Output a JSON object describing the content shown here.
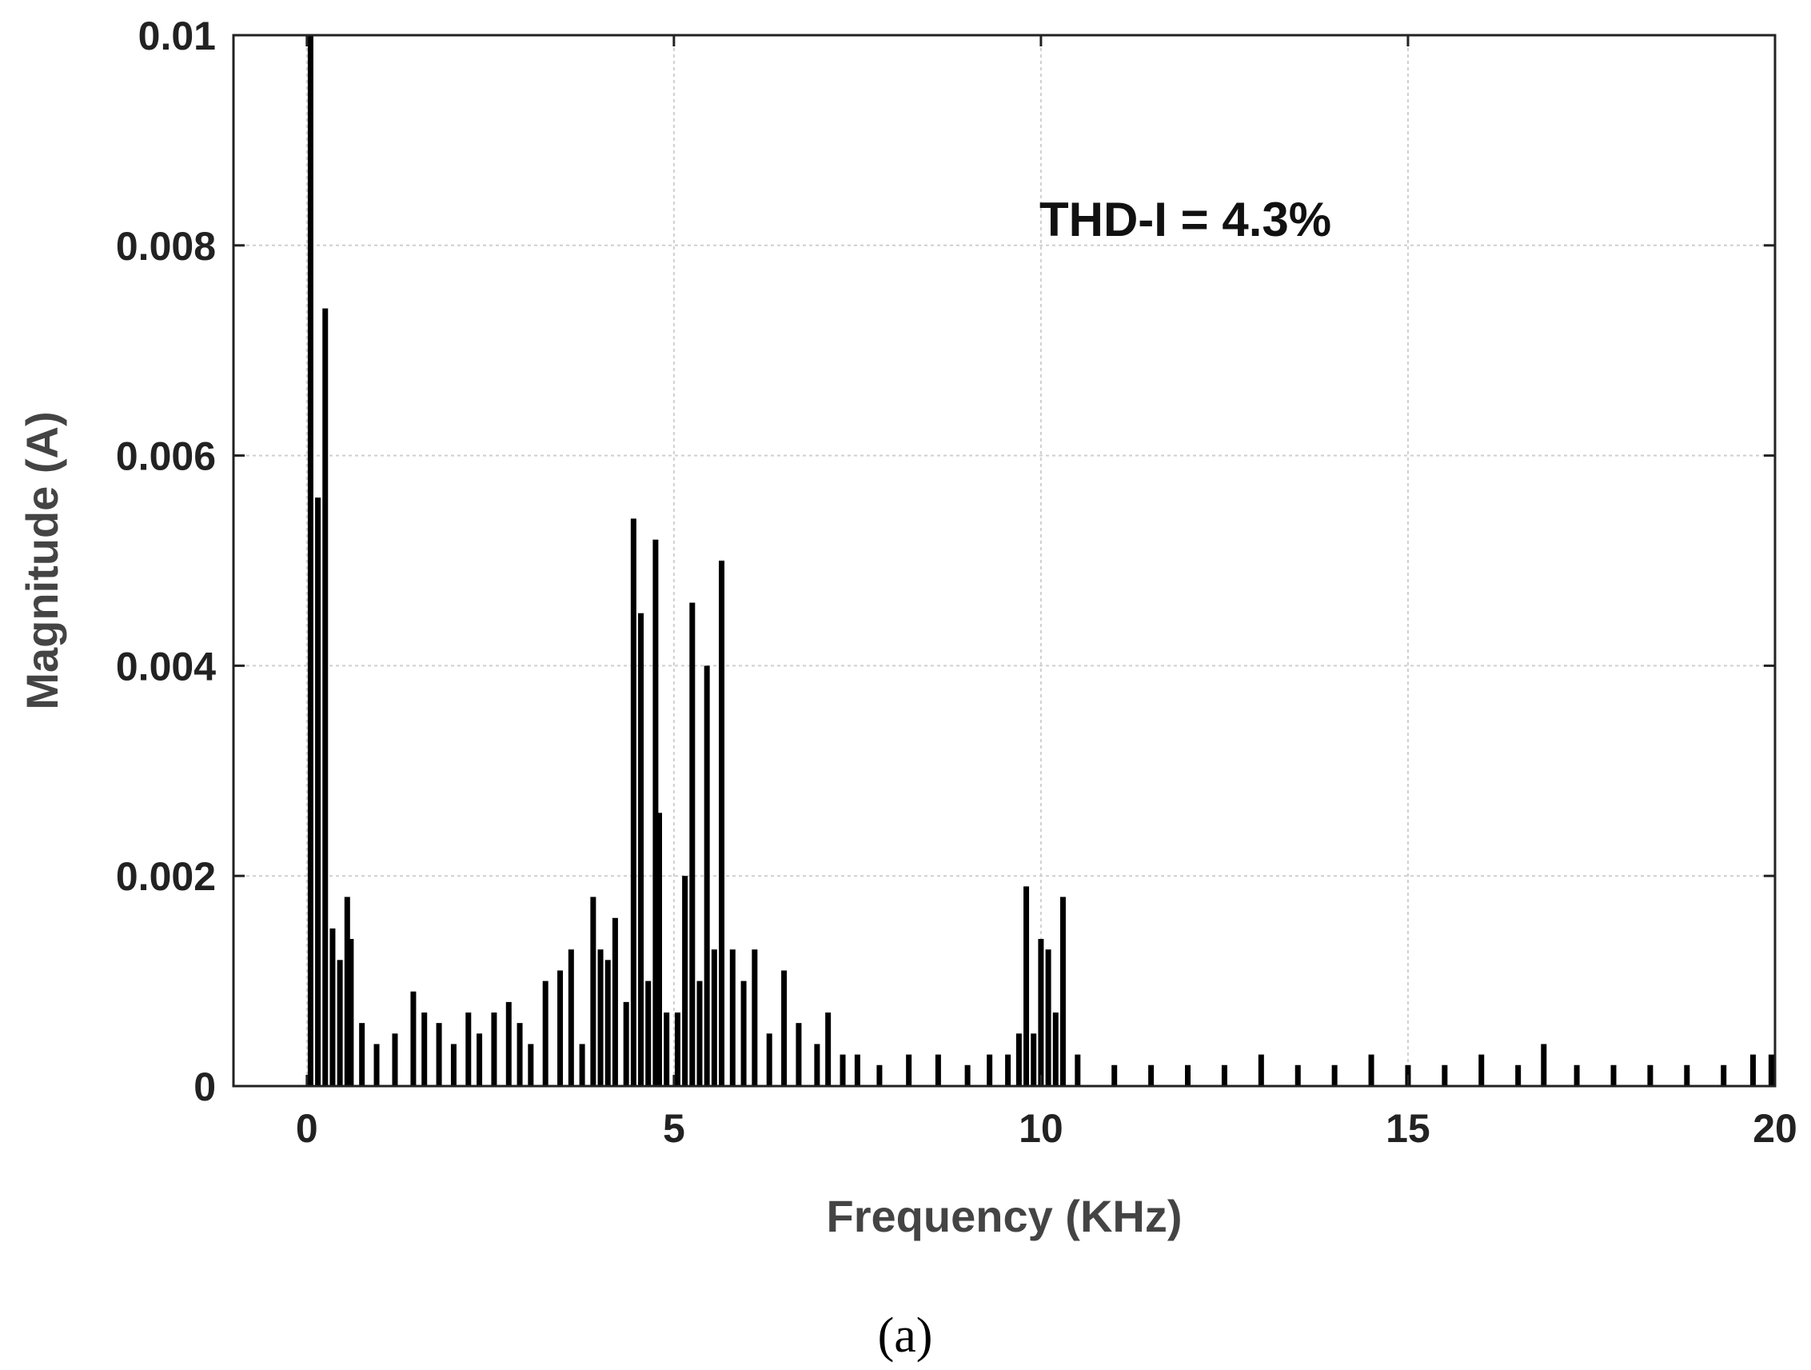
{
  "chart_data": {
    "type": "bar",
    "title": "",
    "xlabel": "Frequency (KHz)",
    "ylabel": "Magnitude (A)",
    "xlim": [
      -1,
      20
    ],
    "ylim": [
      0,
      0.01
    ],
    "x_ticks": [
      0,
      5,
      10,
      15,
      20
    ],
    "x_tick_labels": [
      "0",
      "5",
      "10",
      "15",
      "20"
    ],
    "y_ticks": [
      0,
      0.002,
      0.004,
      0.006,
      0.008,
      0.01
    ],
    "y_tick_labels": [
      "0",
      "0.002",
      "0.004",
      "0.006",
      "0.008",
      "0.01"
    ],
    "grid": true,
    "annotation": "THD-I = 4.3%",
    "panel_label": "(a)",
    "bar_color": "#000000",
    "series": [
      {
        "x": [
          0.05,
          0.15,
          0.25,
          0.35,
          0.45,
          0.55,
          0.6,
          0.75,
          0.95,
          1.2,
          1.45,
          1.6,
          1.8,
          2.0,
          2.2,
          2.35,
          2.55,
          2.75,
          2.9,
          3.05,
          3.25,
          3.45,
          3.6,
          3.75,
          3.9,
          4.0,
          4.1,
          4.2,
          4.35,
          4.45,
          4.55,
          4.65,
          4.75,
          4.8,
          4.9,
          5.05,
          5.15,
          5.25,
          5.35,
          5.45,
          5.55,
          5.65,
          5.8,
          5.95,
          6.1,
          6.3,
          6.5,
          6.7,
          6.95,
          7.1,
          7.3,
          7.5,
          7.8,
          8.2,
          8.6,
          9.0,
          9.3,
          9.55,
          9.7,
          9.8,
          9.9,
          10.0,
          10.1,
          10.2,
          10.3,
          10.5,
          11.0,
          11.5,
          12.0,
          12.5,
          13.0,
          13.5,
          14.0,
          14.5,
          15.0,
          15.5,
          16.0,
          16.5,
          16.85,
          17.3,
          17.8,
          18.3,
          18.8,
          19.3,
          19.7,
          19.95
        ],
        "values": [
          0.01,
          0.0056,
          0.0074,
          0.0015,
          0.0012,
          0.0018,
          0.0014,
          0.0006,
          0.0004,
          0.0005,
          0.0009,
          0.0007,
          0.0006,
          0.0004,
          0.0007,
          0.0005,
          0.0007,
          0.0008,
          0.0006,
          0.0004,
          0.001,
          0.0011,
          0.0013,
          0.0004,
          0.0018,
          0.0013,
          0.0012,
          0.0016,
          0.0008,
          0.0054,
          0.0045,
          0.001,
          0.0052,
          0.0026,
          0.0007,
          0.0007,
          0.002,
          0.0046,
          0.001,
          0.004,
          0.0013,
          0.005,
          0.0013,
          0.001,
          0.0013,
          0.0005,
          0.0011,
          0.0006,
          0.0004,
          0.0007,
          0.0003,
          0.0003,
          0.0002,
          0.0003,
          0.0003,
          0.0002,
          0.0003,
          0.0003,
          0.0005,
          0.0019,
          0.0005,
          0.0014,
          0.0013,
          0.0007,
          0.0018,
          0.0003,
          0.0002,
          0.0002,
          0.0002,
          0.0002,
          0.0003,
          0.0002,
          0.0002,
          0.0003,
          0.0002,
          0.0002,
          0.0003,
          0.0002,
          0.0004,
          0.0002,
          0.0002,
          0.0002,
          0.0002,
          0.0002,
          0.0003,
          0.0003
        ]
      }
    ]
  }
}
